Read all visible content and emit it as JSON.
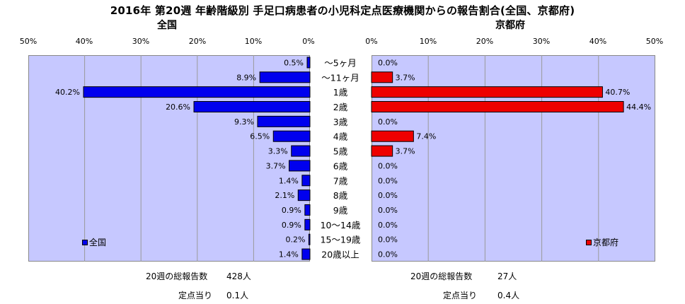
{
  "title": "2016年 第20週 年齢階級別 手足口病患者の小児科定点医療機関からの報告割合(全国、京都府)",
  "chart_data": [
    {
      "type": "bar",
      "title": "全国",
      "legend": "全国",
      "legend_position": "bottom-left",
      "color": "#0000ee",
      "direction": "right-to-left",
      "xlim": [
        0,
        50
      ],
      "ticks": [
        "50%",
        "40%",
        "30%",
        "20%",
        "10%",
        "0%"
      ],
      "grid": true,
      "categories": [
        "～5ヶ月",
        "～11ヶ月",
        "1歳",
        "2歳",
        "3歳",
        "4歳",
        "5歳",
        "6歳",
        "7歳",
        "8歳",
        "9歳",
        "10～14歳",
        "15～19歳",
        "20歳以上"
      ],
      "values": [
        0.5,
        8.9,
        40.2,
        20.6,
        9.3,
        6.5,
        3.3,
        3.7,
        1.4,
        2.1,
        0.9,
        0.9,
        0.2,
        1.4
      ],
      "value_labels": [
        "0.5%",
        "8.9%",
        "40.2%",
        "20.6%",
        "9.3%",
        "6.5%",
        "3.3%",
        "3.7%",
        "1.4%",
        "2.1%",
        "0.9%",
        "0.9%",
        "0.2%",
        "1.4%"
      ]
    },
    {
      "type": "bar",
      "title": "京都府",
      "legend": "京都府",
      "legend_position": "bottom-right",
      "color": "#ee0000",
      "direction": "left-to-right",
      "xlim": [
        0,
        50
      ],
      "ticks": [
        "0%",
        "10%",
        "20%",
        "30%",
        "40%",
        "50%"
      ],
      "grid": true,
      "categories": [
        "～5ヶ月",
        "～11ヶ月",
        "1歳",
        "2歳",
        "3歳",
        "4歳",
        "5歳",
        "6歳",
        "7歳",
        "8歳",
        "9歳",
        "10～14歳",
        "15～19歳",
        "20歳以上"
      ],
      "values": [
        0.0,
        3.7,
        40.7,
        44.4,
        0.0,
        7.4,
        3.7,
        0.0,
        0.0,
        0.0,
        0.0,
        0.0,
        0.0,
        0.0
      ],
      "value_labels": [
        "0.0%",
        "3.7%",
        "40.7%",
        "44.4%",
        "0.0%",
        "7.4%",
        "3.7%",
        "0.0%",
        "0.0%",
        "0.0%",
        "0.0%",
        "0.0%",
        "0.0%",
        "0.0%"
      ]
    }
  ],
  "footer": {
    "national_total_label": "20週の総報告数",
    "national_total_value": "428人",
    "national_per_label": "定点当り",
    "national_per_value": "0.1人",
    "kyoto_total_label": "20週の総報告数",
    "kyoto_total_value": "27人",
    "kyoto_per_label": "定点当り",
    "kyoto_per_value": "0.4人"
  }
}
